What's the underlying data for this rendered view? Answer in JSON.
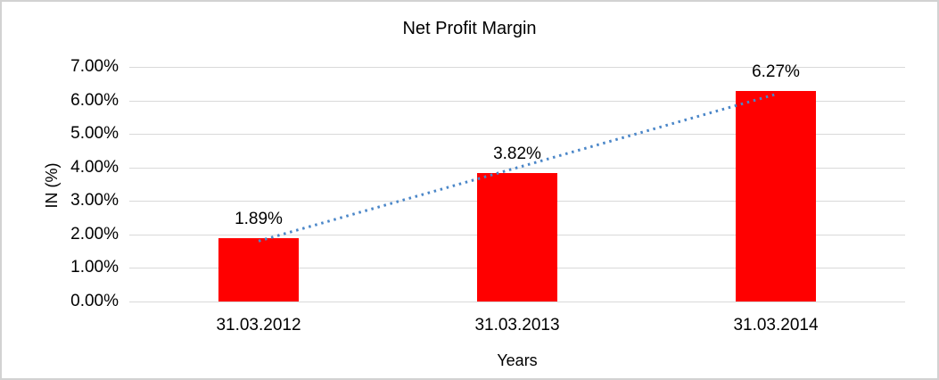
{
  "chart_data": {
    "type": "bar",
    "title": "Net Profit Margin",
    "xlabel": "Years",
    "ylabel": "IN (%)",
    "categories": [
      "31.03.2012",
      "31.03.2013",
      "31.03.2014"
    ],
    "values": [
      1.89,
      3.82,
      6.27
    ],
    "data_labels": [
      "1.89%",
      "3.82%",
      "6.27%"
    ],
    "ytick_labels": [
      "0.00%",
      "1.00%",
      "2.00%",
      "3.00%",
      "4.00%",
      "5.00%",
      "6.00%",
      "7.00%"
    ],
    "ylim": [
      0,
      7
    ],
    "ytick_step": 1,
    "grid": "horizontal",
    "legend": "none",
    "trendline": {
      "type": "linear",
      "style": "dotted"
    },
    "colors": {
      "bar": "#ff0000",
      "trendline": "#4a86c8",
      "gridline": "#d9d9d9",
      "text": "#000000",
      "frame_border": "#d2d2d2",
      "background": "#ffffff"
    }
  }
}
